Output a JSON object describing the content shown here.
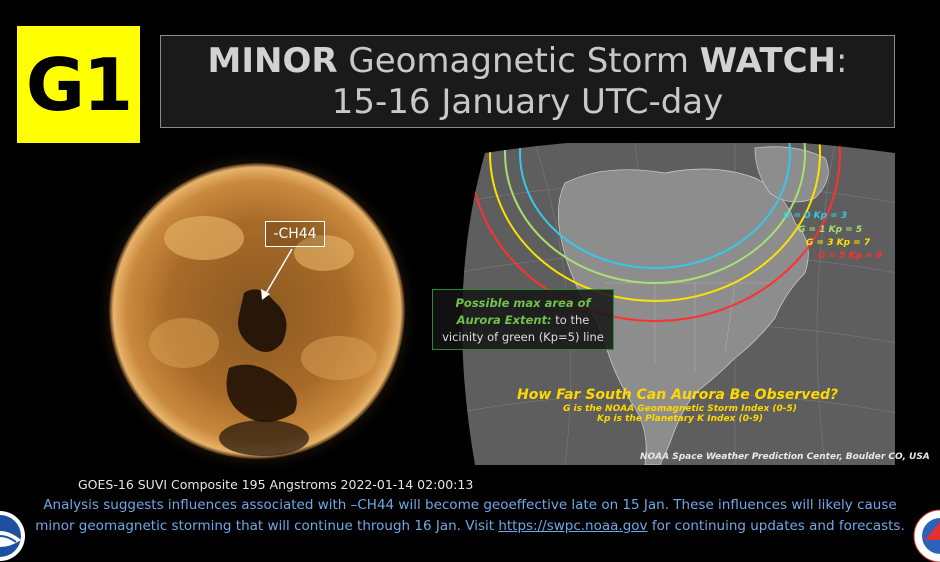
{
  "badge": {
    "text": "G1",
    "color": "#ffff00"
  },
  "title": {
    "strong1": "MINOR",
    "mid": " Geomagnetic Storm ",
    "strong2": "WATCH",
    "tail": ":",
    "line2": "15-16 January UTC-day"
  },
  "sun": {
    "label": "-CH44",
    "caption": "GOES-16 SUVI Composite 195 Angstroms 2022-01-14 02:00:13"
  },
  "map": {
    "legend": [
      {
        "text": "G = 0  Kp = 3",
        "color": "#36c8e8"
      },
      {
        "text": "G = 1  Kp = 5",
        "color": "#a8e070"
      },
      {
        "text": "G = 3  Kp = 7",
        "color": "#ffe000"
      },
      {
        "text": "G = 5  Kp = 9",
        "color": "#ff3030"
      }
    ],
    "aurora_hl": "Possible max area of",
    "aurora_hl2": "Aurora Extent:",
    "aurora_rest": " to the",
    "aurora_line3": "vicinity of green (Kp=5) line",
    "question": "How Far South Can Aurora Be Observed?",
    "sub1": "G is the NOAA Geomagnetic Storm Index (0-5)",
    "sub2": "Kp is the Planetary K Index (0-9)",
    "credit": "NOAA Space Weather Prediction Center, Boulder CO, USA"
  },
  "analysis": {
    "line1": "Analysis suggests influences associated with –CH44 will become geoeffective  late on 15 Jan. These influences will likely cause",
    "line2_pre": "minor geomagnetic storming that will continue through 16 Jan. Visit ",
    "link": "https://swpc.noaa.gov",
    "line2_post": " for continuing updates and forecasts."
  }
}
